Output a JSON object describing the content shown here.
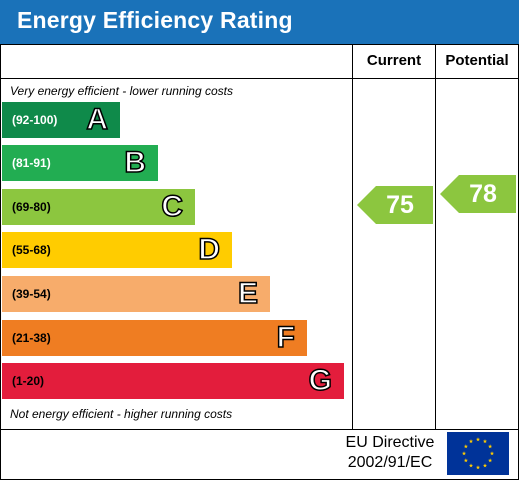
{
  "title": "Energy Efficiency Rating",
  "columns": {
    "current": "Current",
    "potential": "Potential"
  },
  "notes": {
    "top": "Very energy efficient - lower running costs",
    "bottom": "Not energy efficient - higher running costs"
  },
  "bands": [
    {
      "range": "(92-100)",
      "letter": "A",
      "color": "#0f8a4a",
      "range_color": "#ffffff"
    },
    {
      "range": "(81-91)",
      "letter": "B",
      "color": "#22ad52",
      "range_color": "#ffffff"
    },
    {
      "range": "(69-80)",
      "letter": "C",
      "color": "#8cc63f",
      "range_color": "#000000"
    },
    {
      "range": "(55-68)",
      "letter": "D",
      "color": "#ffcc00",
      "range_color": "#000000"
    },
    {
      "range": "(39-54)",
      "letter": "E",
      "color": "#f7ac6b",
      "range_color": "#000000"
    },
    {
      "range": "(21-38)",
      "letter": "F",
      "color": "#ef7d22",
      "range_color": "#000000"
    },
    {
      "range": "(1-20)",
      "letter": "G",
      "color": "#e31d3c",
      "range_color": "#000000"
    }
  ],
  "ratings": {
    "current": {
      "value": "75",
      "color": "#8cc63f"
    },
    "potential": {
      "value": "78",
      "color": "#8cc63f"
    }
  },
  "footer": {
    "directive_line1": "EU Directive",
    "directive_line2": "2002/91/EC"
  },
  "flag": {
    "name": "eu-flag",
    "background": "#003399",
    "stars": "#ffcc00"
  }
}
